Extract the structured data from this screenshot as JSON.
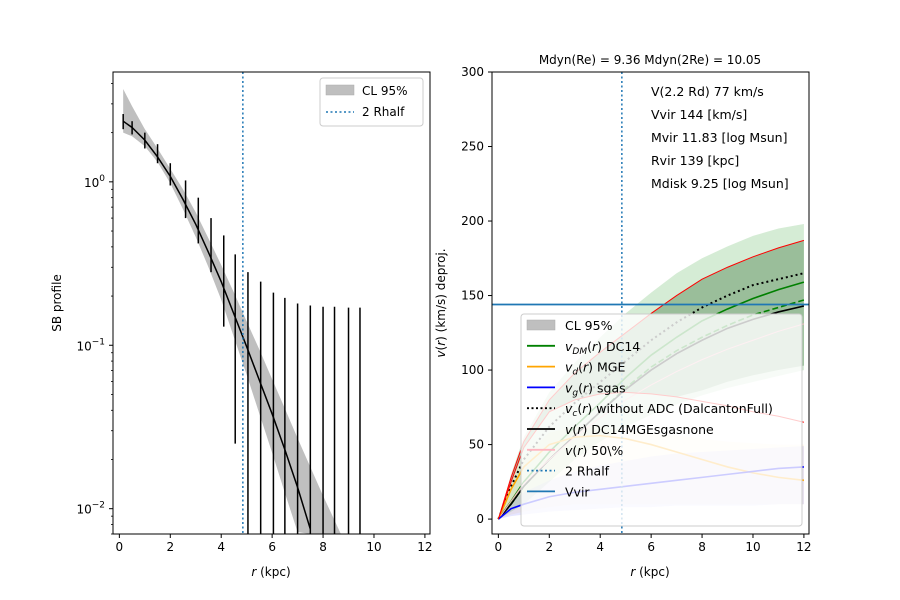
{
  "chart_data": [
    {
      "type": "line",
      "panel": "left",
      "xlabel": "r (kpc)",
      "ylabel": "SB profile",
      "xlim": [
        -0.25,
        12.2
      ],
      "ylim": [
        0.007,
        4.7
      ],
      "yscale": "log",
      "xticks": [
        0,
        2,
        4,
        6,
        8,
        10,
        12
      ],
      "xtick_labels": [
        "0",
        "2",
        "4",
        "6",
        "8",
        "10",
        "12"
      ],
      "yticks": [
        1,
        0.1,
        0.01
      ],
      "ytick_labels": [
        "10^0",
        "10^-1",
        "10^-2"
      ],
      "legend": {
        "placement": "top-right",
        "entries": [
          {
            "label": "CL 95%",
            "style": "patch",
            "color": "#bfbfbf"
          },
          {
            "label": "2 Rhalf",
            "style": "dotted",
            "color": "#1f77b4"
          }
        ]
      },
      "vline_2rhalf": 4.85,
      "model": {
        "x": [
          0.15,
          0.5,
          1.0,
          1.5,
          2.0,
          2.5,
          3.0,
          3.5,
          4.0,
          4.5,
          5.0,
          5.5,
          6.0,
          6.5,
          7.0,
          7.5
        ],
        "y": [
          2.35,
          2.15,
          1.8,
          1.42,
          1.08,
          0.78,
          0.55,
          0.37,
          0.245,
          0.155,
          0.098,
          0.061,
          0.038,
          0.023,
          0.0135,
          0.0075
        ]
      },
      "band": {
        "x": [
          0.15,
          0.5,
          1.0,
          1.5,
          2.0,
          2.5,
          3.0,
          3.5,
          4.0,
          4.5,
          5.0,
          5.5,
          6.0,
          6.5,
          7.0,
          7.5,
          8.0,
          8.7
        ],
        "lower": [
          2.0,
          1.9,
          1.65,
          1.32,
          0.98,
          0.68,
          0.46,
          0.3,
          0.19,
          0.112,
          0.066,
          0.038,
          0.022,
          0.0125,
          0.0072,
          0.005,
          0.004,
          0.003
        ],
        "upper": [
          3.7,
          2.9,
          2.1,
          1.6,
          1.2,
          0.9,
          0.65,
          0.45,
          0.31,
          0.21,
          0.14,
          0.094,
          0.062,
          0.041,
          0.027,
          0.018,
          0.012,
          0.007
        ]
      },
      "errorbars": {
        "x": [
          0.15,
          0.5,
          1.0,
          1.5,
          2.0,
          2.6,
          3.1,
          3.6,
          4.1,
          4.55,
          5.05,
          5.55,
          6.05,
          6.5,
          7.0,
          7.5,
          8.0,
          8.45,
          9.0,
          9.45
        ],
        "y": [
          2.35,
          2.15,
          1.8,
          1.5,
          1.12,
          0.8,
          0.56,
          0.37,
          0.24,
          0.16,
          0.11,
          0.07,
          0.04,
          0.025,
          0.014,
          0.009,
          0.006,
          0.005,
          0.004,
          0.003
        ],
        "upper": [
          2.6,
          2.35,
          2.0,
          1.7,
          1.3,
          1.02,
          0.8,
          0.6,
          0.47,
          0.36,
          0.28,
          0.245,
          0.21,
          0.195,
          0.18,
          0.175,
          0.172,
          0.172,
          0.17,
          0.17
        ],
        "lower": [
          2.1,
          1.95,
          1.6,
          1.3,
          0.95,
          0.6,
          0.42,
          0.28,
          0.13,
          0.025,
          0.001,
          0.001,
          0.001,
          0.001,
          0.001,
          0.001,
          0.001,
          0.001,
          0.001,
          0.001
        ]
      }
    },
    {
      "type": "line",
      "panel": "right",
      "title": "Mdyn(Re) = 9.36  Mdyn(2Re) = 10.05",
      "xlabel": "r (kpc)",
      "ylabel": "v(r) (km/s) deproj.",
      "xlim": [
        -0.25,
        12.2
      ],
      "ylim": [
        -10,
        300
      ],
      "xticks": [
        0,
        2,
        4,
        6,
        8,
        10,
        12
      ],
      "xtick_labels": [
        "0",
        "2",
        "4",
        "6",
        "8",
        "10",
        "12"
      ],
      "yticks": [
        0,
        50,
        100,
        150,
        200,
        250,
        300
      ],
      "ytick_labels": [
        "0",
        "50",
        "100",
        "150",
        "200",
        "250",
        "300"
      ],
      "annotations": [
        "V(2.2 Rd) 77 km/s",
        "Vvir 144 [km/s]",
        "Mvir 11.83 [log Msun]",
        "Rvir 139 [kpc]",
        "Mdisk 9.25 [log Msun]"
      ],
      "vline_2rhalf": 4.85,
      "hline_vvir": 144,
      "legend": {
        "placement": "lower-right",
        "entries": [
          {
            "label": "CL 95%",
            "style": "patch",
            "color": "#bfbfbf"
          },
          {
            "label": "v_DM(r) DC14",
            "style": "solid",
            "color": "#008000"
          },
          {
            "label": "v_d(r) MGE",
            "style": "solid",
            "color": "#ffa500"
          },
          {
            "label": "v_g(r) sgas",
            "style": "solid",
            "color": "#0000ff"
          },
          {
            "label": "v_c(r) without ADC (DalcantonFull)",
            "style": "dotted",
            "color": "#000000"
          },
          {
            "label": "v(r) DC14MGEsgasnone",
            "style": "solid",
            "color": "#000000"
          },
          {
            "label": "v(r) 50\\%",
            "style": "solid",
            "color": "#ffb6c1"
          },
          {
            "label": "2 Rhalf",
            "style": "dotted",
            "color": "#1f77b4"
          },
          {
            "label": "Vvir",
            "style": "solid",
            "color": "#1f77b4"
          }
        ]
      },
      "x": [
        0,
        0.5,
        1,
        2,
        3,
        4,
        5,
        6,
        7,
        8,
        9,
        10,
        11,
        12
      ],
      "series": [
        {
          "name": "v_tot_upper_red",
          "color": "#ff0000",
          "values": [
            0,
            28,
            52,
            80,
            98,
            112,
            125,
            138,
            150,
            161,
            169,
            176,
            182,
            187
          ]
        },
        {
          "name": "v_c(r) without ADC (DalcantonFull)",
          "color": "#000000",
          "style": "dotted",
          "values": [
            0,
            22,
            40,
            62,
            78,
            92,
            106,
            120,
            132,
            142,
            150,
            157,
            161,
            165
          ]
        },
        {
          "name": "v_DM(r) DC14",
          "color": "#008000",
          "values": [
            0,
            12,
            25,
            45,
            62,
            78,
            95,
            110,
            122,
            133,
            141,
            148,
            154,
            159
          ]
        },
        {
          "name": "v_DM dashed",
          "color": "#008000",
          "style": "dashed",
          "values": [
            0,
            10,
            22,
            40,
            56,
            72,
            88,
            102,
            113,
            122,
            130,
            137,
            142,
            147
          ]
        },
        {
          "name": "v(r) DC14MGEsgasnone",
          "color": "#000000",
          "values": [
            0,
            10,
            22,
            40,
            56,
            72,
            87,
            100,
            111,
            120,
            128,
            134,
            139,
            143
          ]
        },
        {
          "name": "v(r) 50\\%",
          "color": "#ffb6c1",
          "values": [
            0,
            12,
            24,
            40,
            55,
            68,
            80,
            90,
            99,
            107,
            114,
            120,
            126,
            131
          ]
        },
        {
          "name": "v_d(r) MGE",
          "color": "#ffa500",
          "values": [
            0,
            20,
            35,
            50,
            55,
            56,
            54,
            50,
            45,
            40,
            35,
            31,
            28,
            26
          ]
        },
        {
          "name": "v_g(r) sgas",
          "color": "#0000ff",
          "values": [
            0,
            7,
            10,
            15,
            18,
            20,
            22,
            24,
            26,
            28,
            30,
            32,
            34,
            35
          ]
        },
        {
          "name": "v_red_lower",
          "color": "#ff0000",
          "values": [
            0,
            25,
            48,
            72,
            80,
            84,
            85,
            84,
            82,
            79,
            76,
            72,
            69,
            65
          ]
        }
      ],
      "bands": [
        {
          "name": "DM band",
          "color": "#2ca02c",
          "lower": [
            0,
            5,
            10,
            25,
            40,
            52,
            62,
            70,
            77,
            83,
            88,
            92,
            96,
            100
          ],
          "upper": [
            0,
            30,
            55,
            85,
            105,
            122,
            138,
            152,
            165,
            175,
            183,
            190,
            195,
            198
          ]
        },
        {
          "name": "disk band",
          "color": "#ffa500",
          "lower": [
            0,
            3,
            5,
            8,
            10,
            10,
            10,
            10,
            10,
            10,
            10,
            10,
            10,
            10
          ],
          "upper": [
            0,
            25,
            42,
            58,
            62,
            62,
            60,
            58,
            56,
            54,
            52,
            51,
            50,
            50
          ]
        },
        {
          "name": "gas band",
          "color": "#0000ff",
          "lower": [
            0,
            2,
            3,
            5,
            6,
            7,
            8,
            8,
            9,
            9,
            9,
            9,
            10,
            10
          ],
          "upper": [
            0,
            12,
            18,
            26,
            32,
            36,
            39,
            42,
            44,
            45,
            46,
            47,
            48,
            49
          ]
        }
      ]
    }
  ]
}
